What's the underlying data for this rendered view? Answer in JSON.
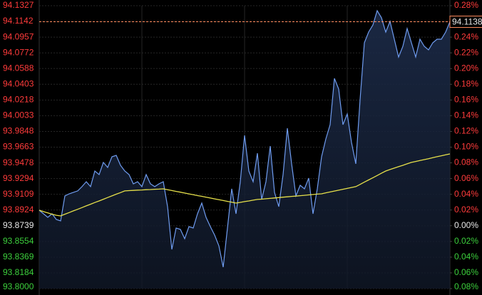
{
  "chart_data": {
    "type": "line",
    "ylim": [
      93.8,
      94.1327
    ],
    "yticks": [
      94.1327,
      94.1142,
      94.0957,
      94.0772,
      94.0588,
      94.0403,
      94.0218,
      94.0033,
      93.9848,
      93.9663,
      93.9478,
      93.9294,
      93.9109,
      93.8924,
      93.8739,
      93.8554,
      93.8369,
      93.8184,
      {
        "value": 93.8,
        "label": "93.8000"
      }
    ],
    "y2lim": [
      -0.08,
      0.28
    ],
    "y2ticks": [
      {
        "value": 0.28,
        "label": "0.28%"
      },
      {
        "value": 0.26,
        "label": "0.26%"
      },
      {
        "value": 0.24,
        "label": "0.24%"
      },
      {
        "value": 0.22,
        "label": "0.22%"
      },
      {
        "value": 0.2,
        "label": "0.20%"
      },
      {
        "value": 0.18,
        "label": "0.18%"
      },
      {
        "value": 0.16,
        "label": "0.16%"
      },
      {
        "value": 0.14,
        "label": "0.14%"
      },
      {
        "value": 0.12,
        "label": "0.12%"
      },
      {
        "value": 0.1,
        "label": "0.10%"
      },
      {
        "value": 0.08,
        "label": "0.08%"
      },
      {
        "value": 0.06,
        "label": "0.06%"
      },
      {
        "value": 0.04,
        "label": "0.04%"
      },
      {
        "value": 0.02,
        "label": "0.02%"
      },
      {
        "value": 0,
        "label": "0.00%"
      },
      {
        "value": -0.02,
        "label": "0.02%"
      },
      {
        "value": -0.04,
        "label": "0.04%"
      },
      {
        "value": -0.06,
        "label": "0.06%"
      },
      {
        "value": -0.08,
        "label": "0.08%"
      }
    ],
    "grid": true,
    "tick_colors": {
      "up": "#ff3b3b",
      "flat": "#e8e8e8",
      "down": "#3ccf3c"
    },
    "current_price": 94.1138,
    "series": [
      {
        "color": "#6f9cf0",
        "values": [
          93.8922,
          93.888,
          93.8838,
          93.888,
          93.8813,
          93.8796,
          93.909,
          93.9115,
          93.9132,
          93.9149,
          93.9199,
          93.9257,
          93.9199,
          93.9383,
          93.9341,
          93.9484,
          93.9425,
          93.955,
          93.9567,
          93.945,
          93.9383,
          93.9341,
          93.9232,
          93.9257,
          93.9199,
          93.9341,
          93.9232,
          93.9199,
          93.9232,
          93.9257,
          93.8964,
          93.8461,
          93.8712,
          93.8696,
          93.8587,
          93.8729,
          93.8712,
          93.888,
          93.9006,
          93.8838,
          93.8729,
          93.8629,
          93.8503,
          93.8252,
          93.8712,
          93.9173,
          93.888,
          93.9257,
          93.9802,
          93.9383,
          93.9257,
          93.9592,
          93.9048,
          93.9257,
          93.9676,
          93.9131,
          93.8964,
          93.9341,
          93.9886,
          93.9467,
          93.909,
          93.9215,
          93.9173,
          93.9299,
          93.888,
          93.9173,
          93.955,
          93.976,
          93.9928,
          94.0472,
          94.0347,
          93.9928,
          94.0053,
          93.9718,
          93.9467,
          94.0221,
          94.0891,
          94.1017,
          94.1101,
          94.1268,
          94.1185,
          94.1017,
          94.1143,
          94.0933,
          94.0724,
          94.0849,
          94.1059,
          94.0891,
          94.0724,
          94.0933,
          94.0849,
          94.0807,
          94.0891,
          94.0933,
          94.0933,
          94.1017,
          94.1138
        ]
      },
      {
        "color": "#e6e04a",
        "values": [
          93.8922,
          93.8905,
          93.889,
          93.8875,
          93.8862,
          93.8855,
          93.8875,
          93.8894,
          93.8914,
          93.8933,
          93.8953,
          93.8973,
          93.8992,
          93.9012,
          93.9031,
          93.9051,
          93.9071,
          93.909,
          93.911,
          93.9129,
          93.9149,
          93.9152,
          93.9155,
          93.9158,
          93.916,
          93.9163,
          93.9165,
          93.9168,
          93.917,
          93.9173,
          93.9163,
          93.9153,
          93.9143,
          93.9134,
          93.9124,
          93.9114,
          93.9104,
          93.9094,
          93.9085,
          93.9075,
          93.9065,
          93.9055,
          93.9045,
          93.9036,
          93.9026,
          93.9016,
          93.9006,
          93.9014,
          93.9023,
          93.9031,
          93.904,
          93.9048,
          93.9052,
          93.9057,
          93.9061,
          93.9066,
          93.907,
          93.9075,
          93.9079,
          93.9084,
          93.9088,
          93.9093,
          93.9097,
          93.9102,
          93.9106,
          93.9111,
          93.9115,
          93.9126,
          93.9136,
          93.9147,
          93.9157,
          93.9168,
          93.9178,
          93.9189,
          93.9199,
          93.9225,
          93.9252,
          93.9278,
          93.9304,
          93.933,
          93.9357,
          93.9383,
          93.94,
          93.9417,
          93.9434,
          93.945,
          93.9467,
          93.9484,
          93.9495,
          93.9506,
          93.9517,
          93.9528,
          93.954,
          93.9551,
          93.9562,
          93.9573,
          93.9584
        ]
      }
    ]
  }
}
